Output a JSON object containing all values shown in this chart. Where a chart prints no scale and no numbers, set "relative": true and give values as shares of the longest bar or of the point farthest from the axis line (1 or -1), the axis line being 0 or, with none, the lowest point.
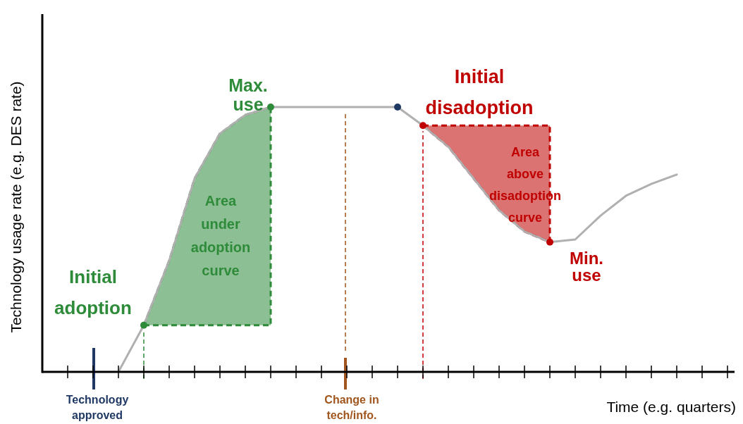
{
  "chart_data": {
    "type": "line",
    "relative": true,
    "ylabel": "Technology usage rate (e.g. DES rate)",
    "xlabel": "Time (e.g. quarters)",
    "grid": false,
    "categories": [
      null,
      null,
      null,
      null,
      null,
      null,
      null,
      null,
      null,
      null,
      null,
      null,
      null,
      null,
      null,
      null,
      null,
      null,
      null,
      null,
      null,
      null,
      null,
      null,
      null,
      null,
      null
    ],
    "series": [
      {
        "color": "#b0b0b0",
        "line_style": "solid",
        "values": [
          null,
          null,
          0,
          0.176,
          0.42,
          0.73,
          0.9,
          0.97,
          1,
          1,
          1,
          1,
          1,
          1,
          0.93,
          0.85,
          0.73,
          0.61,
          0.53,
          0.49,
          0.5,
          0.59,
          0.665,
          0.71,
          0.745,
          null,
          null
        ]
      }
    ],
    "annotations": [
      "Initial adoption",
      "Max. use",
      "Area under adoption curve",
      "Initial disadoption",
      "Area above disadoption curve",
      "Min. use",
      "Technology approved",
      "Change in tech/info."
    ]
  }
}
